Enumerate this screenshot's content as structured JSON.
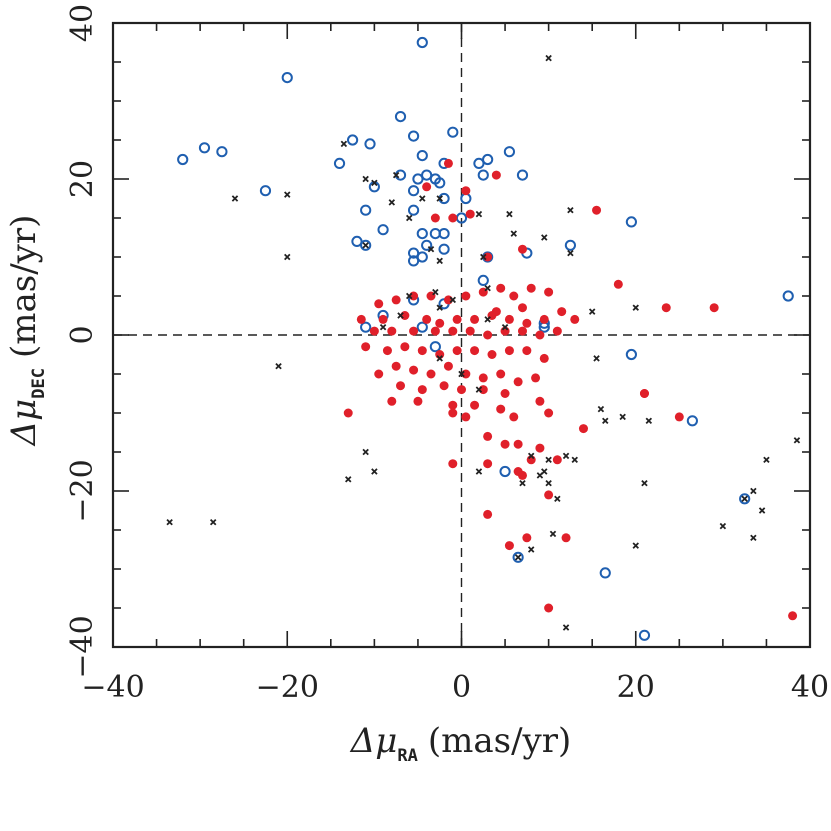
{
  "chart_data": {
    "type": "scatter",
    "title": "",
    "xlabel": {
      "symbol": "Δμ",
      "sub": "RA",
      "unit": "(mas/yr)"
    },
    "ylabel": {
      "symbol": "Δμ",
      "sub": "DEC",
      "unit": "(mas/yr)"
    },
    "xlim": [
      -40,
      40
    ],
    "ylim": [
      -40,
      40
    ],
    "xticks": [
      -40,
      -20,
      0,
      20,
      40
    ],
    "yticks": [
      -40,
      -20,
      0,
      20,
      40
    ],
    "xtick_labels": [
      "−40",
      "−20",
      "0",
      "20",
      "40"
    ],
    "ytick_labels": [
      "−40",
      "−20",
      "0",
      "20",
      "40"
    ],
    "grid": false,
    "zero_lines": true,
    "colors": {
      "blue": "#1f5fb0",
      "red": "#e0202a",
      "black": "#222222"
    },
    "series": [
      {
        "marker": "open-circle",
        "color": "#1f5fb0",
        "points": [
          [
            -4.5,
            37.5
          ],
          [
            -20,
            33
          ],
          [
            -32,
            22.5
          ],
          [
            -29.5,
            24
          ],
          [
            -27.5,
            23.5
          ],
          [
            -22.5,
            18.5
          ],
          [
            -14,
            22
          ],
          [
            -12.5,
            25
          ],
          [
            -10.5,
            24.5
          ],
          [
            -7,
            28
          ],
          [
            -5.5,
            25.5
          ],
          [
            -1,
            26
          ],
          [
            -4.5,
            23
          ],
          [
            -2,
            22
          ],
          [
            2,
            22
          ],
          [
            3,
            22.5
          ],
          [
            5.5,
            23.5
          ],
          [
            -7,
            20.5
          ],
          [
            -5,
            20
          ],
          [
            -4,
            20.5
          ],
          [
            -3,
            20
          ],
          [
            -2.5,
            19.5
          ],
          [
            2.5,
            20.5
          ],
          [
            7,
            20.5
          ],
          [
            -10,
            19
          ],
          [
            -5.5,
            18.5
          ],
          [
            -2,
            17.5
          ],
          [
            0.5,
            17.5
          ],
          [
            -11,
            16
          ],
          [
            -5.5,
            16
          ],
          [
            0,
            15
          ],
          [
            -12,
            12
          ],
          [
            -11,
            11.5
          ],
          [
            -9,
            13.5
          ],
          [
            -4.5,
            13
          ],
          [
            -3,
            13
          ],
          [
            -2,
            13
          ],
          [
            -4,
            11.5
          ],
          [
            -2,
            11
          ],
          [
            -5.5,
            10.5
          ],
          [
            -4.5,
            10
          ],
          [
            -5.5,
            9.5
          ],
          [
            3,
            10
          ],
          [
            7.5,
            10.5
          ],
          [
            12.5,
            11.5
          ],
          [
            2.5,
            7
          ],
          [
            -5.5,
            4.5
          ],
          [
            -2,
            4
          ],
          [
            -11,
            1
          ],
          [
            -9,
            2.5
          ],
          [
            -4.5,
            1
          ],
          [
            -3,
            -1.5
          ],
          [
            9.5,
            1.5
          ],
          [
            9.5,
            1
          ],
          [
            19.5,
            14.5
          ],
          [
            19.5,
            -2.5
          ],
          [
            37.5,
            5
          ],
          [
            26.5,
            -11
          ],
          [
            5,
            -17.5
          ],
          [
            32.5,
            -21
          ],
          [
            16.5,
            -30.5
          ],
          [
            21,
            -38.5
          ],
          [
            6.5,
            -28.5
          ]
        ]
      },
      {
        "marker": "filled-circle",
        "color": "#e0202a",
        "points": [
          [
            -1.5,
            22
          ],
          [
            -4,
            19
          ],
          [
            0.5,
            18.5
          ],
          [
            4,
            20.5
          ],
          [
            -1,
            15
          ],
          [
            1,
            15.5
          ],
          [
            -3,
            15
          ],
          [
            15.5,
            16
          ],
          [
            3,
            10
          ],
          [
            7,
            11
          ],
          [
            -9.5,
            4
          ],
          [
            -7.5,
            4.5
          ],
          [
            -5.5,
            5
          ],
          [
            -3.5,
            5
          ],
          [
            -1.5,
            4.5
          ],
          [
            0.5,
            5
          ],
          [
            2.5,
            5.5
          ],
          [
            4.5,
            6
          ],
          [
            6,
            5
          ],
          [
            8,
            6
          ],
          [
            10,
            5.5
          ],
          [
            18,
            6.5
          ],
          [
            23.5,
            3.5
          ],
          [
            29,
            3.5
          ],
          [
            -11.5,
            2
          ],
          [
            -9,
            2
          ],
          [
            -6.5,
            2.5
          ],
          [
            -4,
            2
          ],
          [
            -2.5,
            1.5
          ],
          [
            -0.5,
            2
          ],
          [
            1.5,
            2
          ],
          [
            3.5,
            2.5
          ],
          [
            5.5,
            2
          ],
          [
            7.5,
            1.5
          ],
          [
            9.5,
            2
          ],
          [
            11.5,
            3
          ],
          [
            13,
            2
          ],
          [
            4,
            3
          ],
          [
            7,
            3.5
          ],
          [
            -10,
            0.5
          ],
          [
            -8,
            0.5
          ],
          [
            -5.5,
            0.5
          ],
          [
            -3,
            0.5
          ],
          [
            -1,
            0.5
          ],
          [
            1,
            0.5
          ],
          [
            3,
            0
          ],
          [
            5,
            0.5
          ],
          [
            7,
            0.5
          ],
          [
            9,
            0
          ],
          [
            11,
            0.5
          ],
          [
            -11,
            -1.5
          ],
          [
            -8.5,
            -2
          ],
          [
            -6.5,
            -1.5
          ],
          [
            -4.5,
            -2
          ],
          [
            -2.5,
            -2.5
          ],
          [
            -0.5,
            -2
          ],
          [
            1.5,
            -2
          ],
          [
            3.5,
            -2.5
          ],
          [
            5.5,
            -2
          ],
          [
            7.5,
            -2
          ],
          [
            9.5,
            -3
          ],
          [
            -9.5,
            -5
          ],
          [
            -7.5,
            -4
          ],
          [
            -5.5,
            -4.5
          ],
          [
            -3.5,
            -5
          ],
          [
            -1.5,
            -4
          ],
          [
            0.5,
            -5
          ],
          [
            2.5,
            -5.5
          ],
          [
            4.5,
            -5
          ],
          [
            6.5,
            -6
          ],
          [
            8.5,
            -5.5
          ],
          [
            -7,
            -6.5
          ],
          [
            -4.5,
            -7
          ],
          [
            -2,
            -6.5
          ],
          [
            0,
            -7
          ],
          [
            2.5,
            -7
          ],
          [
            5,
            -7.5
          ],
          [
            -8,
            -8.5
          ],
          [
            -5,
            -8.5
          ],
          [
            -1,
            -9
          ],
          [
            1.5,
            -9
          ],
          [
            4.5,
            -9.5
          ],
          [
            9,
            -8.5
          ],
          [
            -13,
            -10
          ],
          [
            -1,
            -10
          ],
          [
            0.5,
            -10.5
          ],
          [
            6,
            -10.5
          ],
          [
            10,
            -10
          ],
          [
            21,
            -7.5
          ],
          [
            25,
            -10.5
          ],
          [
            14,
            -12
          ],
          [
            3,
            -13
          ],
          [
            6.5,
            -14
          ],
          [
            9,
            -14.5
          ],
          [
            5,
            -14
          ],
          [
            -1,
            -16.5
          ],
          [
            3,
            -16.5
          ],
          [
            8,
            -16
          ],
          [
            11,
            -16
          ],
          [
            6.5,
            -17.5
          ],
          [
            7,
            -18
          ],
          [
            10,
            -20.5
          ],
          [
            3,
            -23
          ],
          [
            5.5,
            -27
          ],
          [
            7.5,
            -26
          ],
          [
            12,
            -26
          ],
          [
            10,
            -35
          ],
          [
            38,
            -36
          ],
          [
            21,
            -7.5
          ]
        ]
      },
      {
        "marker": "cross",
        "color": "#222222",
        "points": [
          [
            10,
            35.5
          ],
          [
            -13.5,
            24.5
          ],
          [
            -26,
            17.5
          ],
          [
            -20,
            18
          ],
          [
            -11,
            20
          ],
          [
            -10,
            19.5
          ],
          [
            -8,
            17
          ],
          [
            -6,
            15
          ],
          [
            -7.5,
            20.5
          ],
          [
            -4.5,
            17.5
          ],
          [
            -2.5,
            17.5
          ],
          [
            2,
            15.5
          ],
          [
            5.5,
            15.5
          ],
          [
            6,
            13
          ],
          [
            12.5,
            16
          ],
          [
            9.5,
            12.5
          ],
          [
            12.5,
            10.5
          ],
          [
            -20,
            10
          ],
          [
            -11,
            11.5
          ],
          [
            -3.5,
            11
          ],
          [
            -2.5,
            9.5
          ],
          [
            2.5,
            10
          ],
          [
            3,
            6
          ],
          [
            -6,
            5
          ],
          [
            -3,
            5.5
          ],
          [
            -1,
            4.5
          ],
          [
            -2.5,
            3.5
          ],
          [
            -9,
            1
          ],
          [
            -7,
            2.5
          ],
          [
            3,
            2
          ],
          [
            5,
            1
          ],
          [
            15,
            3
          ],
          [
            20,
            3.5
          ],
          [
            -21,
            -4
          ],
          [
            -2.5,
            -3
          ],
          [
            0,
            -5
          ],
          [
            2,
            -7
          ],
          [
            15.5,
            -3
          ],
          [
            16,
            -9.5
          ],
          [
            16.5,
            -11
          ],
          [
            18.5,
            -10.5
          ],
          [
            21.5,
            -11
          ],
          [
            -11,
            -15
          ],
          [
            -13,
            -18.5
          ],
          [
            -10,
            -17.5
          ],
          [
            2,
            -17.5
          ],
          [
            8,
            -15.5
          ],
          [
            10,
            -16
          ],
          [
            12,
            -15.5
          ],
          [
            13,
            -16
          ],
          [
            7,
            -19
          ],
          [
            9,
            -18
          ],
          [
            9.5,
            -17.5
          ],
          [
            10,
            -19
          ],
          [
            11,
            -21
          ],
          [
            21,
            -19
          ],
          [
            32.5,
            -21
          ],
          [
            33.5,
            -20
          ],
          [
            34.5,
            -22.5
          ],
          [
            38.5,
            -13.5
          ],
          [
            35,
            -16
          ],
          [
            -33.5,
            -24
          ],
          [
            -28.5,
            -24
          ],
          [
            30,
            -24.5
          ],
          [
            33.5,
            -26
          ],
          [
            20,
            -27
          ],
          [
            10.5,
            -25.5
          ],
          [
            8,
            -27.5
          ],
          [
            6.5,
            -28.5
          ],
          [
            12,
            -37.5
          ]
        ]
      }
    ]
  }
}
